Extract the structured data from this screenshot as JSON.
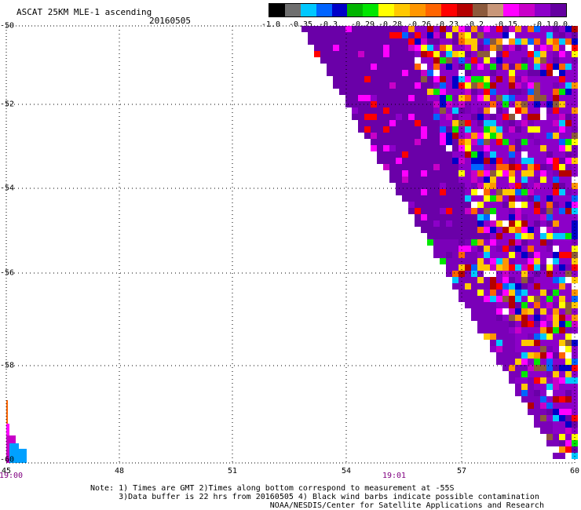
{
  "title": "ASCAT 25KM MLE-1 ascending",
  "date": "20160505",
  "colorbar": {
    "colors": [
      "#000000",
      "#6e6e6e",
      "#00c8ff",
      "#0064ff",
      "#0000c8",
      "#00b400",
      "#00e600",
      "#ffff00",
      "#ffc800",
      "#ff9600",
      "#ff6400",
      "#ff0000",
      "#b40000",
      "#8c5a3c",
      "#c89678",
      "#ff00ff",
      "#c800c8",
      "#8c00c8",
      "#6400a0"
    ],
    "labels": [
      "-1.0",
      "-0.35",
      "-0.3",
      "-0.29",
      "-0.28",
      "-0.26",
      "-0.23",
      "-0.2",
      "-0.15",
      "-0.1",
      "0.0"
    ]
  },
  "map": {
    "lat_labels": [
      "-50",
      "-52",
      "-54",
      "-56",
      "-58",
      "-60"
    ],
    "lon_labels": [
      "45",
      "48",
      "51",
      "54",
      "57",
      "60"
    ],
    "time_labels": [
      "19:00",
      "19:01"
    ]
  },
  "notes": [
    "Note: 1) Times are GMT 2)Times along bottom correspond to measurement at -55S",
    "      3)Data buffer is 22 hrs from 20160505 4) Black wind barbs indicate possible contamination",
    "                                      NOAA/NESDIS/Center for Satellite Applications and Research"
  ]
}
